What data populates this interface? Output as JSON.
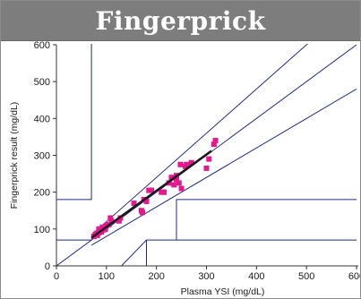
{
  "banner": {
    "title": "Fingerprick"
  },
  "chart_data": {
    "type": "scatter",
    "title": "Fingerprick",
    "xlabel": "Plasma YSI (mg/dL)",
    "ylabel": "Fingerprick result (mg/dL)",
    "xlim": [
      0,
      600
    ],
    "ylim": [
      0,
      600
    ],
    "x_ticks": [
      "0",
      "100",
      "200",
      "300",
      "400",
      "500",
      "600"
    ],
    "y_ticks": [
      "0",
      "100",
      "200",
      "300",
      "400",
      "500",
      "600"
    ],
    "grid": false,
    "legend": "none",
    "colors": {
      "points": "#e6178c",
      "fit": "#1a1a1a",
      "zones": "#1f2a8a",
      "axes": "#333333"
    },
    "points": [
      [
        75,
        80
      ],
      [
        78,
        85
      ],
      [
        80,
        88
      ],
      [
        82,
        83
      ],
      [
        85,
        90
      ],
      [
        85,
        100
      ],
      [
        88,
        95
      ],
      [
        90,
        92
      ],
      [
        92,
        105
      ],
      [
        95,
        98
      ],
      [
        98,
        100
      ],
      [
        100,
        110
      ],
      [
        105,
        112
      ],
      [
        108,
        130
      ],
      [
        110,
        122
      ],
      [
        125,
        122
      ],
      [
        128,
        130
      ],
      [
        155,
        170
      ],
      [
        170,
        150
      ],
      [
        172,
        145
      ],
      [
        175,
        180
      ],
      [
        180,
        175
      ],
      [
        185,
        205
      ],
      [
        190,
        205
      ],
      [
        210,
        200
      ],
      [
        215,
        200
      ],
      [
        225,
        225
      ],
      [
        230,
        240
      ],
      [
        235,
        220
      ],
      [
        240,
        235
      ],
      [
        240,
        245
      ],
      [
        245,
        225
      ],
      [
        248,
        275
      ],
      [
        250,
        210
      ],
      [
        258,
        270
      ],
      [
        260,
        275
      ],
      [
        270,
        280
      ],
      [
        300,
        265
      ],
      [
        305,
        290
      ],
      [
        315,
        330
      ],
      [
        318,
        340
      ]
    ],
    "fit_line": {
      "x": [
        70,
        310
      ],
      "y": [
        76,
        312
      ]
    },
    "zone_lines": [
      {
        "x": [
          0,
          600
        ],
        "y": [
          0,
          600
        ]
      },
      {
        "x": [
          70,
          600
        ],
        "y": [
          84,
          720
        ]
      },
      {
        "x": [
          70,
          600
        ],
        "y": [
          56,
          480
        ]
      },
      {
        "x": [
          0,
          70,
          70,
          300
        ],
        "y": [
          180,
          180,
          750,
          750
        ]
      },
      {
        "x": [
          0,
          70
        ],
        "y": [
          70,
          70
        ]
      },
      {
        "x": [
          240,
          240,
          600
        ],
        "y": [
          70,
          180,
          180
        ]
      },
      {
        "x": [
          130,
          180,
          600
        ],
        "y": [
          0,
          70,
          70
        ]
      },
      {
        "x": [
          180,
          180
        ],
        "y": [
          0,
          70
        ]
      }
    ]
  }
}
